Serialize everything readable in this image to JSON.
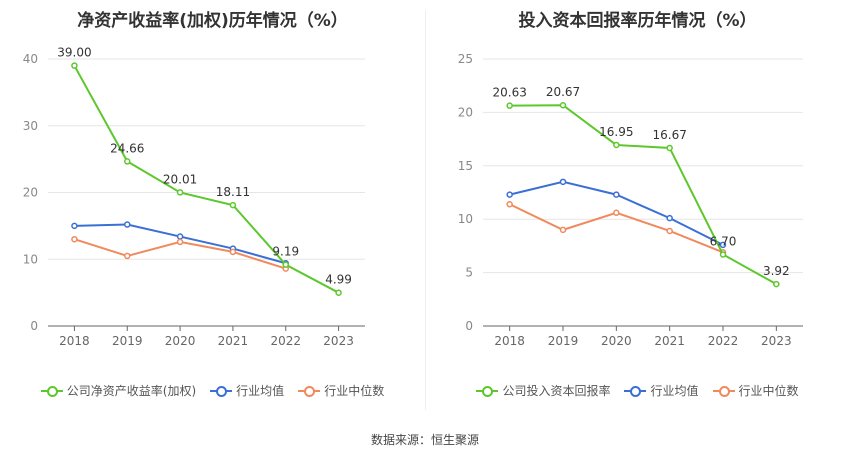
{
  "source_text": "数据来源：恒生聚源",
  "chart_data": [
    {
      "type": "line",
      "title": "净资产收益率(加权)历年情况（%）",
      "categories": [
        "2018",
        "2019",
        "2020",
        "2021",
        "2022",
        "2023"
      ],
      "ylim": [
        0,
        40
      ],
      "yticks": [
        0,
        10,
        20,
        30,
        40
      ],
      "grid": true,
      "legend_position": "bottom",
      "series": [
        {
          "name": "公司净资产收益率(加权)",
          "color": "#5cc82c",
          "values": [
            39.0,
            24.66,
            20.01,
            18.11,
            9.19,
            4.99
          ],
          "labels": [
            "39.00",
            "24.66",
            "20.01",
            "18.11",
            "9.19",
            "4.99"
          ]
        },
        {
          "name": "行业均值",
          "color": "#3a6fd6",
          "values": [
            15.0,
            15.2,
            13.4,
            11.6,
            9.4,
            null
          ]
        },
        {
          "name": "行业中位数",
          "color": "#f08a5d",
          "values": [
            13.0,
            10.5,
            12.6,
            11.1,
            8.6,
            null
          ]
        }
      ]
    },
    {
      "type": "line",
      "title": "投入资本回报率历年情况（%）",
      "categories": [
        "2018",
        "2019",
        "2020",
        "2021",
        "2022",
        "2023"
      ],
      "ylim": [
        0,
        25
      ],
      "yticks": [
        0,
        5,
        10,
        15,
        20,
        25
      ],
      "grid": true,
      "legend_position": "bottom",
      "series": [
        {
          "name": "公司投入资本回报率",
          "color": "#5cc82c",
          "values": [
            20.63,
            20.67,
            16.95,
            16.67,
            6.7,
            3.92
          ],
          "labels": [
            "20.63",
            "20.67",
            "16.95",
            "16.67",
            "6.70",
            "3.92"
          ]
        },
        {
          "name": "行业均值",
          "color": "#3a6fd6",
          "values": [
            12.3,
            13.5,
            12.3,
            10.1,
            7.6,
            null
          ]
        },
        {
          "name": "行业中位数",
          "color": "#f08a5d",
          "values": [
            11.4,
            9.0,
            10.6,
            8.9,
            6.9,
            null
          ]
        }
      ]
    }
  ]
}
